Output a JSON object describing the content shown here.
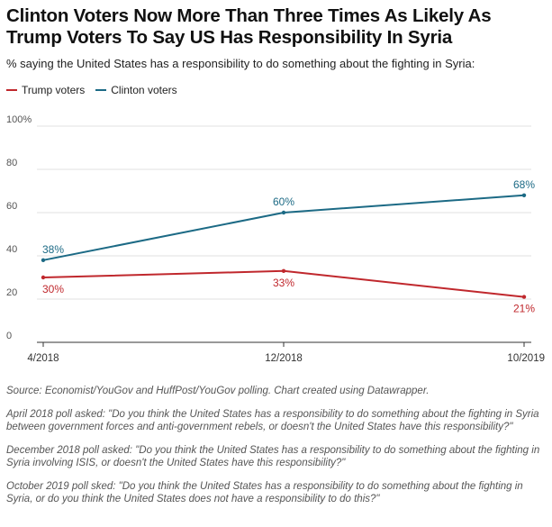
{
  "title": "Clinton Voters Now More Than Three Times As Likely As Trump Voters To Say US Has Responsibility In Syria",
  "subtitle": "% saying the United States has a responsibility to do something about the fighting in Syria:",
  "colors": {
    "trump": "#c0282d",
    "clinton": "#1c6a85",
    "axis": "#333333",
    "grid": "#e0e0e0",
    "tick_text": "#555555"
  },
  "legend": [
    {
      "label": "Trump voters",
      "color": "#c0282d"
    },
    {
      "label": "Clinton voters",
      "color": "#1c6a85"
    }
  ],
  "chart_data": {
    "type": "line",
    "categories": [
      "4/2018",
      "12/2018",
      "10/2019"
    ],
    "series": [
      {
        "name": "Trump voters",
        "values": [
          30,
          33,
          21
        ],
        "labels": [
          "30%",
          "33%",
          "21%"
        ]
      },
      {
        "name": "Clinton voters",
        "values": [
          38,
          60,
          68
        ],
        "labels": [
          "38%",
          "60%",
          "68%"
        ]
      }
    ],
    "yticks": [
      0,
      20,
      40,
      60,
      80,
      100
    ],
    "ytick_labels": [
      "0",
      "20",
      "40",
      "60",
      "80",
      "100%"
    ],
    "ylim": [
      0,
      100
    ],
    "grid": true,
    "legend_placement": "top-left"
  },
  "notes": {
    "source": "Source: Economist/YouGov and HuffPost/YouGov polling. Chart created using Datawrapper.",
    "april": "April 2018 poll asked: \"Do you think the United States has a responsibility to do something about the fighting in Syria between government forces and anti-government rebels, or doesn't the United States have this responsibility?\"",
    "december": "December 2018 poll asked: \"Do you think the United States has a responsibility to do something about the fighting in Syria involving ISIS, or doesn't the United States have this responsibility?\"",
    "october": "October 2019 poll sked: \"Do you think the United States has a responsibility to do something about the fighting in Syria, or do you think the United States does not have a responsibility to do this?\""
  }
}
